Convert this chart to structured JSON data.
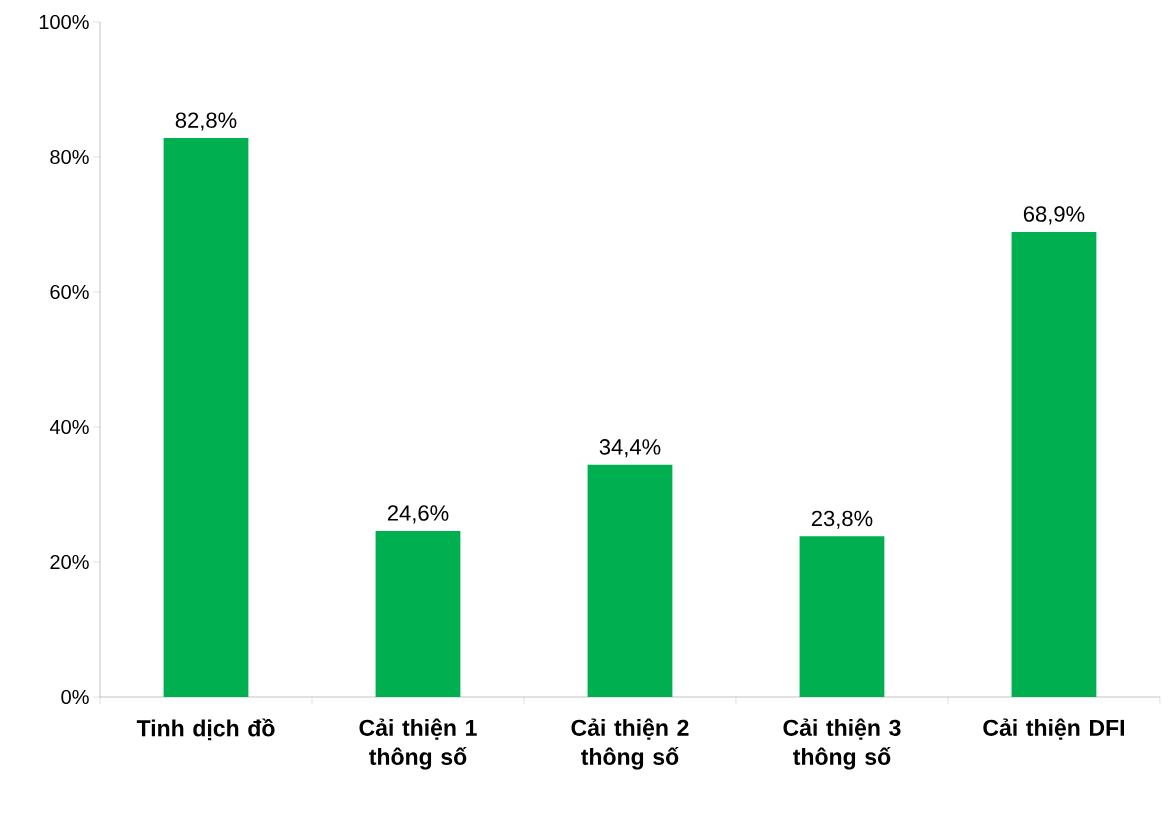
{
  "chart_data": {
    "type": "bar",
    "categories": [
      "Tinh dịch đồ",
      "Cải thiện 1 thông số",
      "Cải thiện 2 thông số",
      "Cải thiện 3 thông số",
      "Cải thiện DFI"
    ],
    "values": [
      82.8,
      24.6,
      34.4,
      23.8,
      68.9
    ],
    "value_labels": [
      "82,8%",
      "24,6%",
      "34,4%",
      "23,8%",
      "68,9%"
    ],
    "color": "#00b050",
    "ylim": [
      0,
      100
    ],
    "yticks": [
      {
        "value": 0,
        "label": "0%"
      },
      {
        "value": 20,
        "label": "20%"
      },
      {
        "value": 40,
        "label": "40%"
      },
      {
        "value": 60,
        "label": "60%"
      },
      {
        "value": 80,
        "label": "80%"
      },
      {
        "value": 100,
        "label": "100%"
      }
    ],
    "grid": false
  }
}
